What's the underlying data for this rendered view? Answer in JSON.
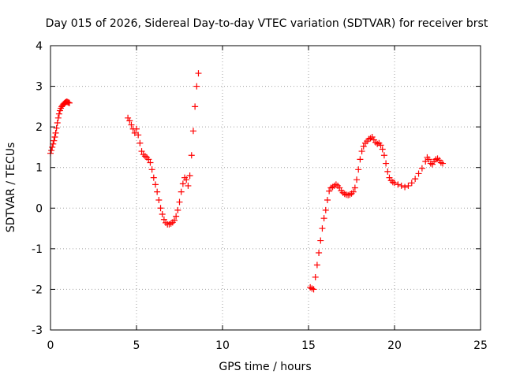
{
  "chart_data": {
    "type": "scatter",
    "title": "Day 015 of 2026, Sidereal Day-to-day VTEC variation (SDTVAR) for receiver brst",
    "xlabel": "GPS time / hours",
    "ylabel": "SDTVAR / TECUs",
    "xlim": [
      0,
      25
    ],
    "ylim": [
      -3,
      4
    ],
    "xticks": [
      0,
      5,
      10,
      15,
      20,
      25
    ],
    "yticks": [
      -3,
      -2,
      -1,
      0,
      1,
      2,
      3,
      4
    ],
    "xtick_labels": [
      "0",
      "5",
      "10",
      "15",
      "20",
      "25"
    ],
    "ytick_labels": [
      "-3",
      "-2",
      "-1",
      "0",
      "1",
      "2",
      "3",
      "4"
    ],
    "grid": true,
    "legend": "none",
    "marker": "plus",
    "series_color": "#ff0000",
    "series": [
      {
        "name": "segment-1",
        "x": [
          0.0,
          0.05,
          0.1,
          0.15,
          0.2,
          0.25,
          0.3,
          0.35,
          0.4,
          0.45,
          0.5,
          0.55,
          0.6,
          0.65,
          0.7,
          0.75,
          0.8,
          0.85,
          0.9,
          0.95,
          1.0,
          1.05,
          1.1
        ],
        "y": [
          1.35,
          1.42,
          1.5,
          1.58,
          1.66,
          1.75,
          1.85,
          1.97,
          2.1,
          2.22,
          2.32,
          2.4,
          2.46,
          2.5,
          2.53,
          2.56,
          2.58,
          2.6,
          2.61,
          2.62,
          2.61,
          2.6,
          2.59
        ]
      },
      {
        "name": "segment-2",
        "x": [
          4.5,
          4.6,
          4.7,
          4.8,
          4.9,
          5.0,
          5.1,
          5.2,
          5.3,
          5.4,
          5.5,
          5.6,
          5.7,
          5.8,
          5.9,
          6.0,
          6.1,
          6.2,
          6.3,
          6.4,
          6.5,
          6.6,
          6.7,
          6.8,
          6.9,
          7.0,
          7.1,
          7.2,
          7.3,
          7.4,
          7.5,
          7.6,
          7.7,
          7.8,
          7.9,
          8.0,
          8.1,
          8.2,
          8.3,
          8.4,
          8.5,
          8.6
        ],
        "y": [
          2.22,
          2.15,
          2.05,
          1.95,
          1.85,
          1.95,
          1.8,
          1.6,
          1.4,
          1.32,
          1.28,
          1.25,
          1.2,
          1.12,
          0.95,
          0.75,
          0.58,
          0.4,
          0.2,
          0.0,
          -0.15,
          -0.28,
          -0.36,
          -0.4,
          -0.4,
          -0.38,
          -0.35,
          -0.3,
          -0.2,
          -0.05,
          0.15,
          0.4,
          0.6,
          0.75,
          0.7,
          0.55,
          0.8,
          1.3,
          1.9,
          2.5,
          3.0,
          3.32
        ]
      },
      {
        "name": "segment-3",
        "x": [
          15.1,
          15.2,
          15.3,
          15.4,
          15.5,
          15.6,
          15.7,
          15.8,
          15.9,
          16.0,
          16.1,
          16.2,
          16.3,
          16.4,
          16.5,
          16.6,
          16.7,
          16.8,
          16.9,
          17.0,
          17.1,
          17.2,
          17.3,
          17.4,
          17.5,
          17.6,
          17.7,
          17.8,
          17.9,
          18.0,
          18.1,
          18.2,
          18.3,
          18.4,
          18.5,
          18.6,
          18.7,
          18.8,
          18.9,
          19.0,
          19.1,
          19.2,
          19.3,
          19.4,
          19.5,
          19.6,
          19.7,
          19.8,
          19.9,
          20.0,
          20.2,
          20.4,
          20.6,
          20.8,
          21.0,
          21.2,
          21.4,
          21.6
        ],
        "y": [
          -1.95,
          -1.98,
          -2.0,
          -1.7,
          -1.4,
          -1.1,
          -0.8,
          -0.5,
          -0.25,
          -0.05,
          0.2,
          0.42,
          0.5,
          0.52,
          0.55,
          0.58,
          0.55,
          0.5,
          0.43,
          0.38,
          0.35,
          0.33,
          0.32,
          0.33,
          0.36,
          0.4,
          0.5,
          0.7,
          0.95,
          1.2,
          1.4,
          1.52,
          1.6,
          1.65,
          1.7,
          1.72,
          1.75,
          1.68,
          1.62,
          1.58,
          1.6,
          1.55,
          1.45,
          1.3,
          1.1,
          0.9,
          0.75,
          0.68,
          0.64,
          0.62,
          0.58,
          0.55,
          0.52,
          0.55,
          0.62,
          0.72,
          0.85,
          0.98
        ]
      },
      {
        "name": "segment-4",
        "x": [
          21.8,
          21.9,
          22.0,
          22.1,
          22.2,
          22.3,
          22.4,
          22.5,
          22.6,
          22.7,
          22.8
        ],
        "y": [
          1.15,
          1.25,
          1.2,
          1.1,
          1.08,
          1.15,
          1.2,
          1.22,
          1.18,
          1.12,
          1.1
        ]
      }
    ]
  }
}
